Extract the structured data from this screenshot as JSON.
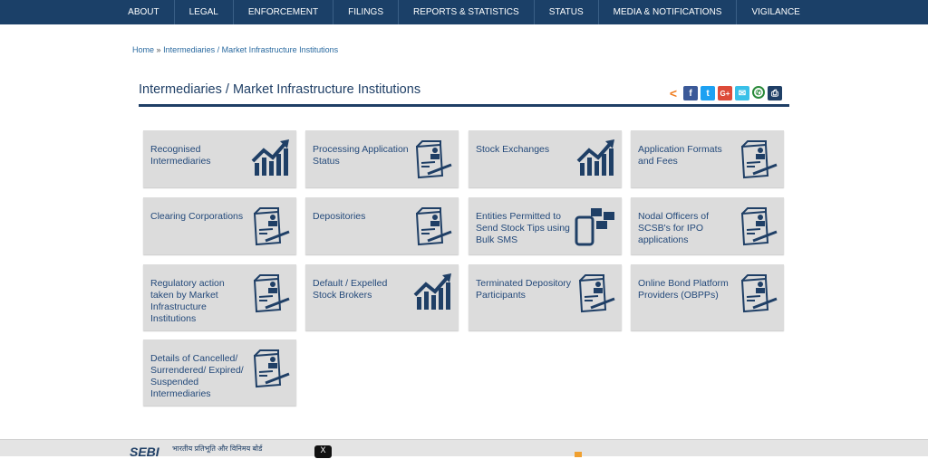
{
  "nav": [
    "ABOUT",
    "LEGAL",
    "ENFORCEMENT",
    "FILINGS",
    "REPORTS & STATISTICS",
    "STATUS",
    "MEDIA & NOTIFICATIONS",
    "VIGILANCE"
  ],
  "breadcrumb": {
    "home": "Home",
    "sep": "»",
    "current": "Intermediaries / Market Infrastructure Institutions"
  },
  "title": "Intermediaries / Market Infrastructure Institutions",
  "share_icons": [
    "share-icon",
    "facebook-icon",
    "twitter-icon",
    "google-plus-icon",
    "email-icon",
    "whatsapp-icon",
    "print-icon"
  ],
  "tiles": [
    {
      "label": "Recognised Intermediaries",
      "icon": "chart"
    },
    {
      "label": "Processing Application Status",
      "icon": "doc"
    },
    {
      "label": "Stock Exchanges",
      "icon": "chart"
    },
    {
      "label": "Application Formats and Fees",
      "icon": "doc"
    },
    {
      "label": "Clearing Corporations",
      "icon": "doc"
    },
    {
      "label": "Depositories",
      "icon": "doc"
    },
    {
      "label": "Entities Permitted to Send Stock Tips using Bulk SMS",
      "icon": "phone"
    },
    {
      "label": "Nodal Officers of SCSB's for IPO applications",
      "icon": "doc"
    },
    {
      "label": "Regulatory action taken by Market Infrastructure Institutions",
      "icon": "doc"
    },
    {
      "label": "Default / Expelled Stock Brokers",
      "icon": "chart"
    },
    {
      "label": "Terminated Depository Participants",
      "icon": "doc"
    },
    {
      "label": "Online Bond Platform Providers (OBPPs)",
      "icon": "doc"
    },
    {
      "label": "Details of Cancelled/ Surrendered/ Expired/ Suspended Intermediaries",
      "icon": "doc"
    }
  ],
  "footer": {
    "logo": "SEBI",
    "hindi": "भारतीय प्रतिभूति और विनिमय बोर्ड"
  },
  "colors": {
    "nav": "#1b4068",
    "accent": "#1f3f66",
    "tile": "#dcdcdc"
  }
}
